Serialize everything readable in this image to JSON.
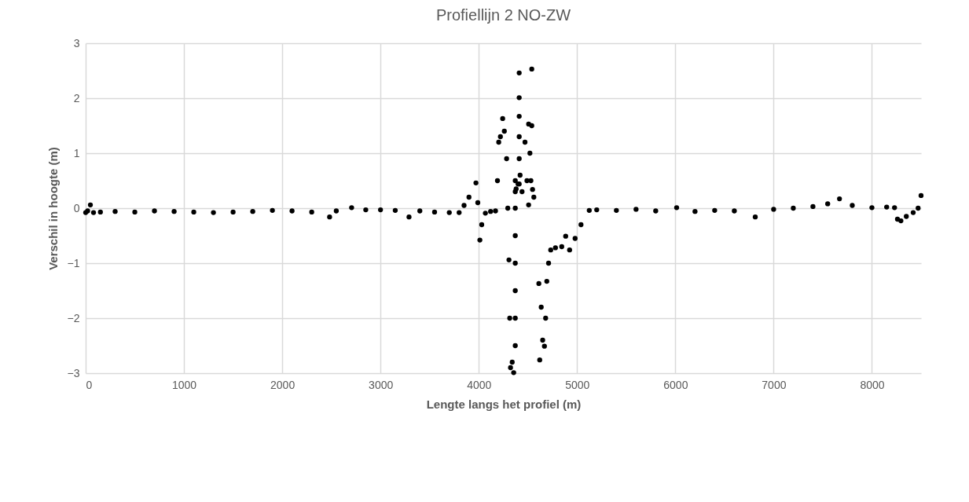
{
  "chart_data": {
    "type": "scatter",
    "title": "Profiellijn 2 NO-ZW",
    "xlabel": "Lengte langs het profiel (m)",
    "ylabel": "Verschil in hoogte (m)",
    "xlim": [
      0,
      8500
    ],
    "xticks": [
      0,
      1000,
      2000,
      3000,
      4000,
      5000,
      6000,
      7000,
      8000
    ],
    "ylim": [
      -3,
      3
    ],
    "yticks": [
      -3,
      -2,
      -1,
      0,
      1,
      2,
      3
    ],
    "grid": true,
    "marker": "circle",
    "x": [
      0,
      20,
      48,
      80,
      150,
      300,
      500,
      700,
      900,
      1100,
      1300,
      1500,
      1700,
      1900,
      2100,
      2300,
      2482,
      2550,
      2706,
      2850,
      3000,
      3150,
      3290,
      3400,
      3550,
      3700,
      3800,
      3850,
      3900,
      3971,
      3990,
      4011,
      4030,
      4067,
      4120,
      4170,
      4190,
      4203,
      4220,
      4243,
      4260,
      4283,
      4295,
      4307,
      4315,
      4323,
      4340,
      4355,
      4371,
      4371,
      4371,
      4371,
      4371,
      4371,
      4371,
      4371,
      4380,
      4400,
      4411,
      4411,
      4411,
      4411,
      4411,
      4411,
      4420,
      4440,
      4470,
      4490,
      4507,
      4507,
      4520,
      4530,
      4539,
      4539,
      4547,
      4560,
      4611,
      4620,
      4635,
      4650,
      4668,
      4680,
      4692,
      4710,
      4732,
      4780,
      4844,
      4884,
      4924,
      4980,
      5040,
      5124,
      5200,
      5400,
      5600,
      5800,
      6013,
      6200,
      6400,
      6600,
      6813,
      7000,
      7200,
      7400,
      7550,
      7670,
      7800,
      8000,
      8150,
      8230,
      8260,
      8295,
      8350,
      8420,
      8470,
      8500
    ],
    "series": [
      {
        "color": "#000000",
        "values": [
          -0.08,
          -0.05,
          0.06,
          -0.08,
          -0.07,
          -0.06,
          -0.07,
          -0.05,
          -0.06,
          -0.07,
          -0.08,
          -0.07,
          -0.06,
          -0.04,
          -0.05,
          -0.07,
          -0.16,
          -0.05,
          0.01,
          -0.03,
          -0.03,
          -0.04,
          -0.16,
          -0.05,
          -0.07,
          -0.08,
          -0.08,
          0.05,
          0.2,
          0.46,
          0.1,
          -0.58,
          -0.3,
          -0.09,
          -0.06,
          -0.05,
          0.5,
          1.2,
          1.3,
          1.63,
          1.4,
          0.9,
          0.0,
          -0.94,
          -2.0,
          -2.9,
          -2.8,
          -2.99,
          -2.5,
          -2.0,
          -1.5,
          -1.0,
          -0.5,
          0.0,
          0.3,
          0.5,
          0.35,
          0.44,
          0.44,
          0.9,
          1.3,
          1.67,
          2.01,
          2.46,
          0.6,
          0.3,
          1.2,
          0.5,
          1.53,
          0.06,
          1.0,
          0.5,
          2.53,
          1.5,
          0.34,
          0.2,
          -1.37,
          -2.76,
          -1.8,
          -2.4,
          -2.51,
          -2.0,
          -1.33,
          -1.0,
          -0.76,
          -0.72,
          -0.7,
          -0.51,
          -0.76,
          -0.55,
          -0.3,
          -0.04,
          -0.03,
          -0.04,
          -0.02,
          -0.05,
          0.01,
          -0.06,
          -0.04,
          -0.05,
          -0.16,
          -0.02,
          0.0,
          0.03,
          0.08,
          0.17,
          0.05,
          0.01,
          0.02,
          0.01,
          -0.2,
          -0.23,
          -0.15,
          -0.08,
          0.0,
          0.23
        ]
      }
    ]
  }
}
